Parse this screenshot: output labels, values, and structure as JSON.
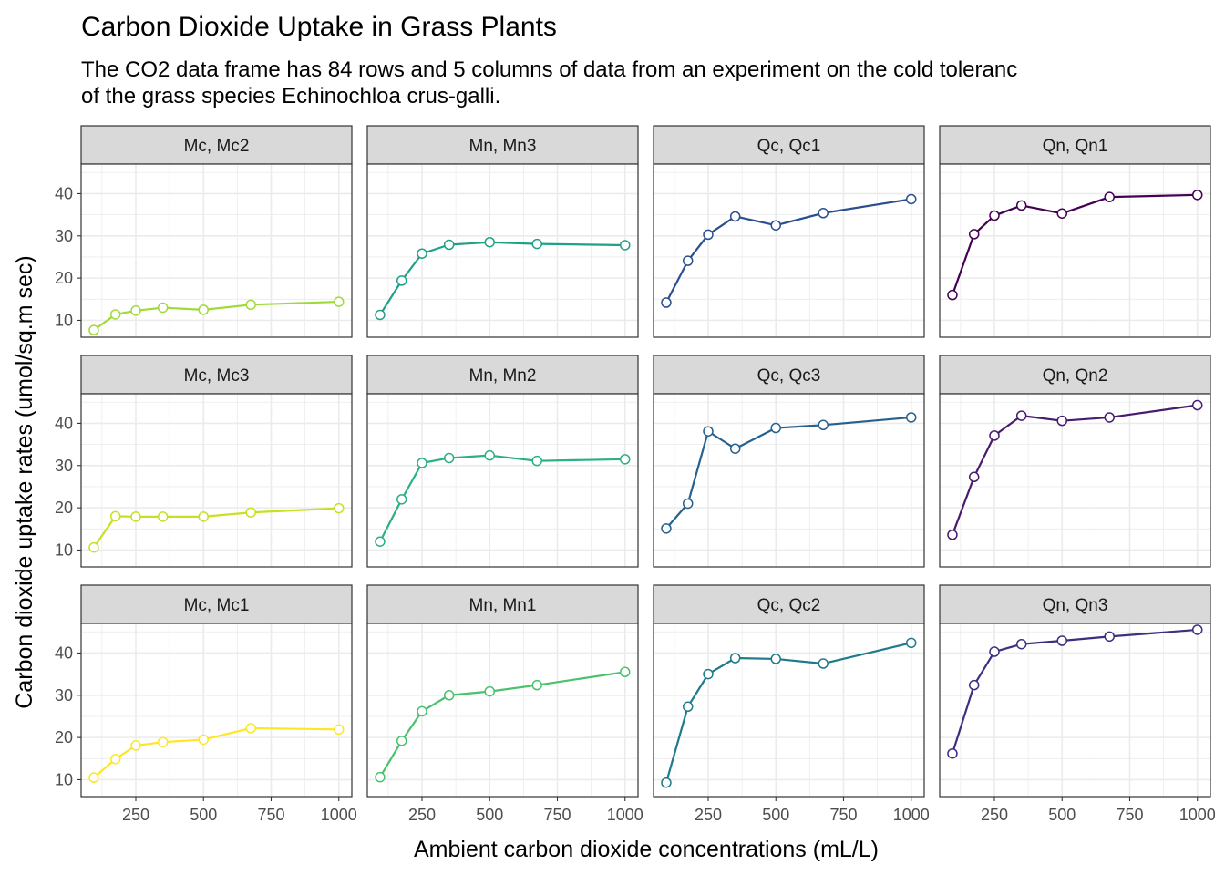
{
  "chart_data": {
    "type": "line",
    "title": "Carbon Dioxide Uptake in Grass Plants",
    "subtitle_lines": [
      "The CO2 data frame has 84 rows and 5 columns of data from an experiment on the cold toleranc",
      "of the grass species Echinochloa crus-galli."
    ],
    "xlabel": "Ambient carbon dioxide concentrations (mL/L)",
    "ylabel": "Carbon dioxide uptake rates (umol/sq.m sec)",
    "xlim": [
      48,
      1048
    ],
    "ylim": [
      6,
      47
    ],
    "xticks": [
      250,
      500,
      750,
      1000
    ],
    "yticks": [
      10,
      20,
      30,
      40
    ],
    "grid": true,
    "legend": "none",
    "layout": {
      "rows": 3,
      "cols": 4
    },
    "x": [
      95,
      175,
      250,
      350,
      500,
      675,
      1000
    ],
    "panels": [
      {
        "row": 0,
        "col": 0,
        "label": "Mc, Mc2",
        "color": "#A0DA39",
        "values": [
          7.7,
          11.4,
          12.3,
          13.0,
          12.5,
          13.7,
          14.4
        ]
      },
      {
        "row": 0,
        "col": 1,
        "label": "Mn, Mn3",
        "color": "#1FA187",
        "values": [
          11.3,
          19.4,
          25.8,
          27.9,
          28.5,
          28.1,
          27.8
        ]
      },
      {
        "row": 0,
        "col": 2,
        "label": "Qc, Qc1",
        "color": "#2A4F8E",
        "values": [
          14.2,
          24.1,
          30.3,
          34.6,
          32.5,
          35.4,
          38.7
        ]
      },
      {
        "row": 0,
        "col": 3,
        "label": "Qn, Qn1",
        "color": "#440154",
        "values": [
          16.0,
          30.4,
          34.8,
          37.2,
          35.3,
          39.2,
          39.7
        ]
      },
      {
        "row": 1,
        "col": 0,
        "label": "Mc, Mc3",
        "color": "#C8E020",
        "values": [
          10.6,
          18.0,
          17.9,
          17.9,
          17.9,
          18.9,
          19.9
        ]
      },
      {
        "row": 1,
        "col": 1,
        "label": "Mn, Mn2",
        "color": "#2BB07F",
        "values": [
          12.0,
          22.0,
          30.6,
          31.8,
          32.4,
          31.1,
          31.5
        ]
      },
      {
        "row": 1,
        "col": 2,
        "label": "Qc, Qc3",
        "color": "#26618E",
        "values": [
          15.1,
          21.0,
          38.1,
          34.0,
          38.9,
          39.6,
          41.4
        ]
      },
      {
        "row": 1,
        "col": 3,
        "label": "Qn, Qn2",
        "color": "#481B6D",
        "values": [
          13.6,
          27.3,
          37.1,
          41.8,
          40.6,
          41.4,
          44.3
        ]
      },
      {
        "row": 2,
        "col": 0,
        "label": "Mc, Mc1",
        "color": "#FDE725",
        "values": [
          10.5,
          14.9,
          18.1,
          18.9,
          19.5,
          22.2,
          21.9
        ]
      },
      {
        "row": 2,
        "col": 1,
        "label": "Mn, Mn1",
        "color": "#4AC16D",
        "values": [
          10.6,
          19.2,
          26.2,
          30.0,
          30.9,
          32.4,
          35.5
        ]
      },
      {
        "row": 2,
        "col": 2,
        "label": "Qc, Qc2",
        "color": "#1F7A8C",
        "values": [
          9.3,
          27.3,
          35.0,
          38.8,
          38.6,
          37.5,
          42.4
        ]
      },
      {
        "row": 2,
        "col": 3,
        "label": "Qn, Qn3",
        "color": "#3B2F80",
        "values": [
          16.2,
          32.4,
          40.3,
          42.1,
          42.9,
          43.9,
          45.5
        ]
      }
    ]
  }
}
